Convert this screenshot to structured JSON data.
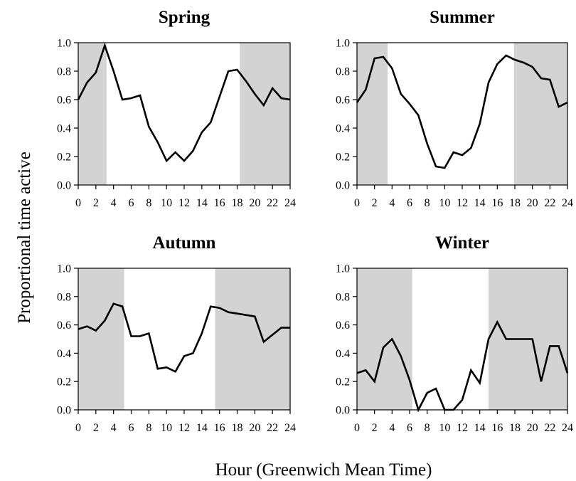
{
  "figure": {
    "ylabel": "Proportional time active",
    "xlabel": "Hour (Greenwich Mean Time)"
  },
  "style": {
    "line_color": "#000000",
    "night_shading": "#d3d3d3",
    "background": "#ffffff"
  },
  "chart_data": [
    {
      "type": "line",
      "title": "Spring",
      "x": [
        0,
        1,
        2,
        3,
        4,
        5,
        6,
        7,
        8,
        9,
        10,
        11,
        12,
        13,
        14,
        15,
        16,
        17,
        18,
        19,
        20,
        21,
        22,
        23,
        24
      ],
      "series": [
        {
          "values": [
            0.6,
            0.72,
            0.79,
            0.98,
            0.8,
            0.6,
            0.61,
            0.63,
            0.41,
            0.3,
            0.17,
            0.23,
            0.17,
            0.24,
            0.37,
            0.44,
            0.62,
            0.8,
            0.81,
            0.73,
            0.64,
            0.56,
            0.68,
            0.61,
            0.6
          ]
        }
      ],
      "shaded_x_ranges": [
        [
          0,
          3.2
        ],
        [
          18.3,
          24
        ]
      ],
      "xlim": [
        0,
        24
      ],
      "ylim": [
        0,
        1
      ],
      "xticks": [
        "0",
        "2",
        "4",
        "6",
        "8",
        "10",
        "12",
        "14",
        "16",
        "18",
        "20",
        "22",
        "24"
      ],
      "yticks": [
        "0.0",
        "0.2",
        "0.4",
        "0.6",
        "0.8",
        "1.0"
      ]
    },
    {
      "type": "line",
      "title": "Summer",
      "x": [
        0,
        1,
        2,
        3,
        4,
        5,
        6,
        7,
        8,
        9,
        10,
        11,
        12,
        13,
        14,
        15,
        16,
        17,
        18,
        19,
        20,
        21,
        22,
        23,
        24
      ],
      "series": [
        {
          "values": [
            0.58,
            0.67,
            0.89,
            0.9,
            0.82,
            0.64,
            0.57,
            0.49,
            0.29,
            0.13,
            0.12,
            0.23,
            0.21,
            0.26,
            0.43,
            0.72,
            0.85,
            0.91,
            0.88,
            0.86,
            0.83,
            0.75,
            0.74,
            0.55,
            0.58
          ]
        }
      ],
      "shaded_x_ranges": [
        [
          0,
          3.5
        ],
        [
          17.9,
          24
        ]
      ],
      "xlim": [
        0,
        24
      ],
      "ylim": [
        0,
        1
      ],
      "xticks": [
        "0",
        "2",
        "4",
        "6",
        "8",
        "10",
        "12",
        "14",
        "16",
        "18",
        "20",
        "22",
        "24"
      ],
      "yticks": [
        "0.0",
        "0.2",
        "0.4",
        "0.6",
        "0.8",
        "1.0"
      ]
    },
    {
      "type": "line",
      "title": "Autumn",
      "x": [
        0,
        1,
        2,
        3,
        4,
        5,
        6,
        7,
        8,
        9,
        10,
        11,
        12,
        13,
        14,
        15,
        16,
        17,
        18,
        19,
        20,
        21,
        22,
        23,
        24
      ],
      "series": [
        {
          "values": [
            0.57,
            0.59,
            0.56,
            0.63,
            0.75,
            0.73,
            0.52,
            0.52,
            0.54,
            0.29,
            0.3,
            0.27,
            0.38,
            0.4,
            0.54,
            0.73,
            0.72,
            0.69,
            0.68,
            0.67,
            0.66,
            0.48,
            0.53,
            0.58,
            0.58
          ]
        }
      ],
      "shaded_x_ranges": [
        [
          0,
          5.2
        ],
        [
          15.5,
          24
        ]
      ],
      "xlim": [
        0,
        24
      ],
      "ylim": [
        0,
        1
      ],
      "xticks": [
        "0",
        "2",
        "4",
        "6",
        "8",
        "10",
        "12",
        "14",
        "16",
        "18",
        "20",
        "22",
        "24"
      ],
      "yticks": [
        "0.0",
        "0.2",
        "0.4",
        "0.6",
        "0.8",
        "1.0"
      ]
    },
    {
      "type": "line",
      "title": "Winter",
      "x": [
        0,
        1,
        2,
        3,
        4,
        5,
        6,
        7,
        8,
        9,
        10,
        11,
        12,
        13,
        14,
        15,
        16,
        17,
        18,
        19,
        20,
        21,
        22,
        23,
        24
      ],
      "series": [
        {
          "values": [
            0.26,
            0.28,
            0.2,
            0.44,
            0.5,
            0.38,
            0.21,
            0.0,
            0.12,
            0.15,
            0.0,
            0.0,
            0.07,
            0.28,
            0.19,
            0.5,
            0.62,
            0.5,
            0.5,
            0.5,
            0.5,
            0.2,
            0.45,
            0.45,
            0.26
          ]
        }
      ],
      "shaded_x_ranges": [
        [
          0,
          6.3
        ],
        [
          15.0,
          24
        ]
      ],
      "xlim": [
        0,
        24
      ],
      "ylim": [
        0,
        1
      ],
      "xticks": [
        "0",
        "2",
        "4",
        "6",
        "8",
        "10",
        "12",
        "14",
        "16",
        "18",
        "20",
        "22",
        "24"
      ],
      "yticks": [
        "0.0",
        "0.2",
        "0.4",
        "0.6",
        "0.8",
        "1.0"
      ]
    }
  ]
}
